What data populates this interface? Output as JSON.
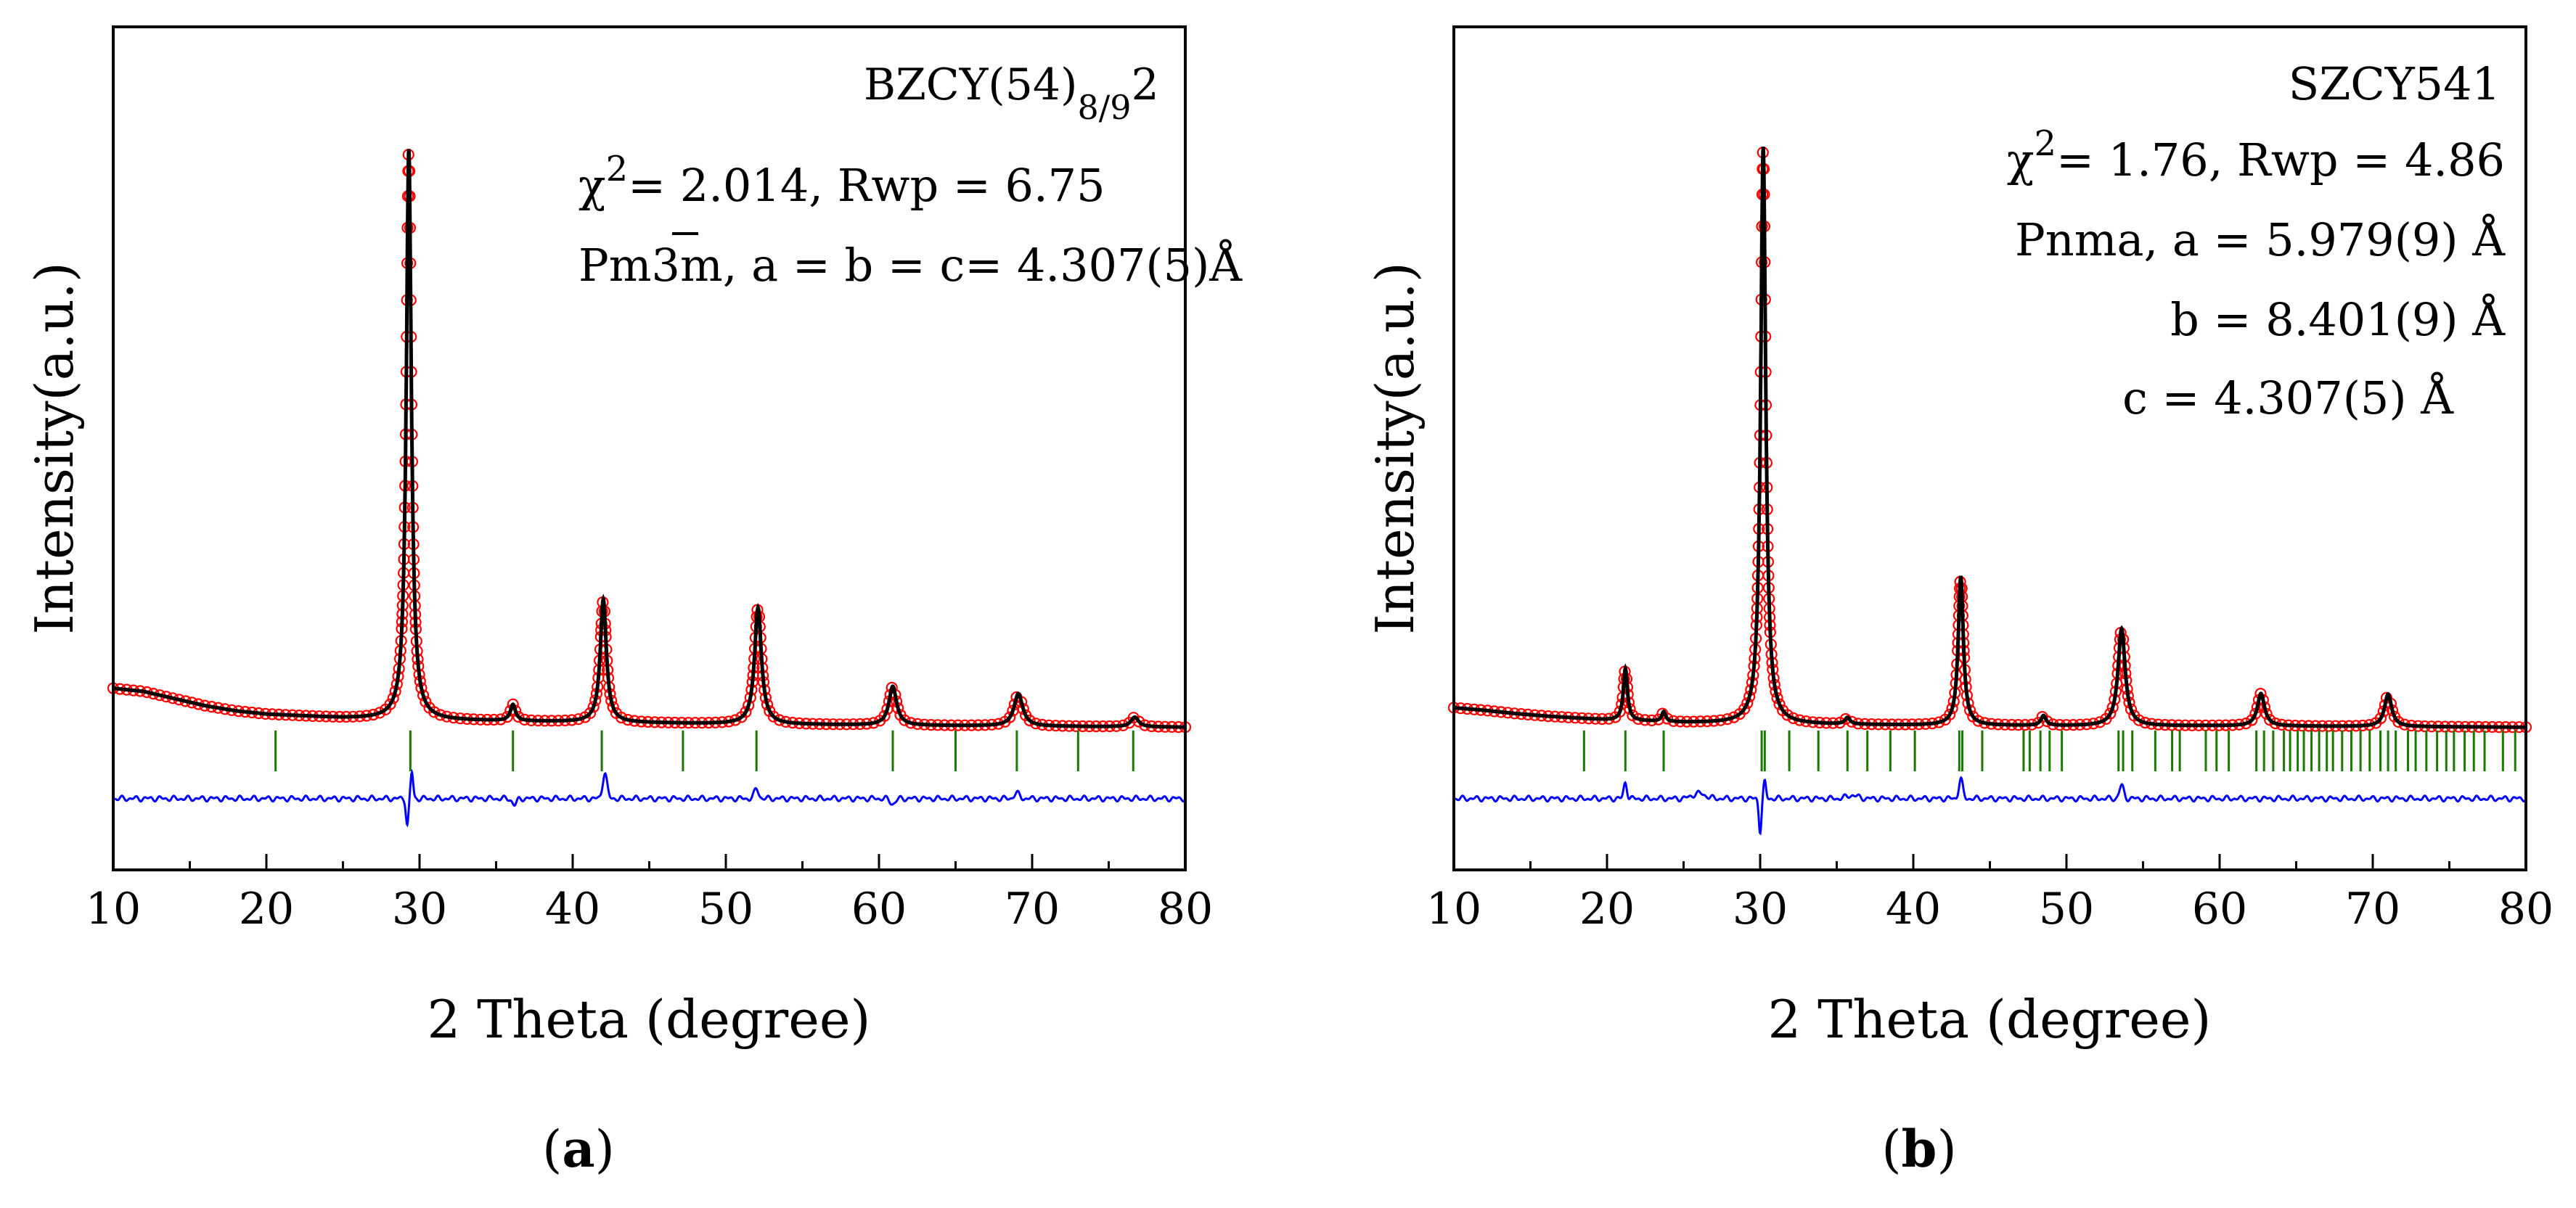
{
  "figure": {
    "caption_a": "a",
    "caption_b": "b"
  },
  "chart_data": [
    {
      "id": "a",
      "type": "line",
      "title": "BZCY(54)8/92",
      "sample_label": {
        "base": "BZCY(54)",
        "sub": "8/9",
        "tail": "2"
      },
      "annotations": [
        {
          "key": "fit_stats",
          "pre": "χ",
          "sup": "2",
          "text": "= 2.014, Rwp = 6.75"
        },
        {
          "key": "space_group",
          "text_a": "Pm",
          "text_b": "3",
          "text_c": "m, a = b = c= 4.307(5)Å"
        }
      ],
      "xlabel": "2 Theta (degree)",
      "ylabel": "Intensity(a.u.)",
      "xlim": [
        10,
        80
      ],
      "ylim": [
        -22,
        108
      ],
      "xticks": [
        "10",
        "20",
        "30",
        "40",
        "50",
        "60",
        "70",
        "80"
      ],
      "background": {
        "x": [
          10,
          12,
          14,
          16,
          18,
          20,
          25,
          30,
          40,
          50,
          60,
          70,
          80
        ],
        "y": [
          6,
          5.5,
          4.4,
          3.3,
          2.5,
          2.0,
          1.4,
          1.1,
          0.8,
          0.5,
          0.3,
          0.15,
          0.0
        ]
      },
      "peaks": [
        {
          "x": 29.3,
          "height": 88,
          "width": 0.2
        },
        {
          "x": 36.1,
          "height": 2.5,
          "width": 0.2
        },
        {
          "x": 42.0,
          "height": 19,
          "width": 0.24
        },
        {
          "x": 52.1,
          "height": 18,
          "width": 0.27
        },
        {
          "x": 60.9,
          "height": 6,
          "width": 0.3
        },
        {
          "x": 69.1,
          "height": 5,
          "width": 0.34
        },
        {
          "x": 76.7,
          "height": 1.5,
          "width": 0.3
        }
      ],
      "bragg_positions": [
        20.6,
        29.4,
        36.1,
        41.9,
        47.2,
        52.0,
        60.9,
        65.0,
        69.0,
        73.0,
        76.6
      ],
      "difference_offset": -11,
      "difference_features": [
        {
          "x": 29.2,
          "amp": -4,
          "width": 0.12
        },
        {
          "x": 29.5,
          "amp": 4,
          "width": 0.12
        },
        {
          "x": 36.2,
          "amp": -1,
          "width": 0.2
        },
        {
          "x": 42.1,
          "amp": 4,
          "width": 0.2
        },
        {
          "x": 52.0,
          "amp": 1.5,
          "width": 0.2
        },
        {
          "x": 60.9,
          "amp": -0.8,
          "width": 0.25
        },
        {
          "x": 69.0,
          "amp": 0.8,
          "width": 0.25
        }
      ],
      "series": [
        {
          "name": "Observed",
          "style": "open-circles",
          "color": "#ff0000"
        },
        {
          "name": "Calculated",
          "style": "line",
          "color": "#000000"
        },
        {
          "name": "Bragg positions",
          "style": "ticks",
          "color": "#1a7a00"
        },
        {
          "name": "Difference",
          "style": "line",
          "color": "#0000ff"
        }
      ]
    },
    {
      "id": "b",
      "type": "line",
      "title": "SZCY541",
      "annotations": [
        {
          "key": "fit_stats",
          "pre": "χ",
          "sup": "2",
          "text": "= 1.76, Rwp = 4.86"
        },
        {
          "key": "cell_a",
          "text": "Pnma, a = 5.979(9) Å"
        },
        {
          "key": "cell_b",
          "text": "b = 8.401(9) Å"
        },
        {
          "key": "cell_c",
          "text": "c = 4.307(5) Å"
        }
      ],
      "xlabel": "2 Theta (degree)",
      "ylabel": "Intensity(a.u.)",
      "xlim": [
        10,
        80
      ],
      "ylim": [
        -22,
        108
      ],
      "xticks": [
        "10",
        "20",
        "30",
        "40",
        "50",
        "60",
        "70",
        "80"
      ],
      "background": {
        "x": [
          10,
          12,
          14,
          16,
          18,
          20,
          25,
          30,
          40,
          50,
          60,
          70,
          80
        ],
        "y": [
          3.0,
          2.6,
          2.1,
          1.7,
          1.4,
          1.1,
          0.7,
          0.5,
          0.3,
          0.2,
          0.2,
          0.1,
          0.0
        ]
      },
      "peaks": [
        {
          "x": 21.2,
          "height": 8,
          "width": 0.16
        },
        {
          "x": 23.7,
          "height": 1.5,
          "width": 0.15
        },
        {
          "x": 30.2,
          "height": 89,
          "width": 0.2
        },
        {
          "x": 35.7,
          "height": 1.0,
          "width": 0.2
        },
        {
          "x": 43.1,
          "height": 23,
          "width": 0.2
        },
        {
          "x": 48.5,
          "height": 1.5,
          "width": 0.2
        },
        {
          "x": 53.6,
          "height": 15,
          "width": 0.28
        },
        {
          "x": 62.7,
          "height": 5,
          "width": 0.28
        },
        {
          "x": 71.0,
          "height": 5,
          "width": 0.28
        }
      ],
      "bragg_positions": [
        18.5,
        21.2,
        23.7,
        30.1,
        30.3,
        31.9,
        33.8,
        35.7,
        37.0,
        38.5,
        40.1,
        43.0,
        43.2,
        44.5,
        47.2,
        47.6,
        48.3,
        48.9,
        49.7,
        53.4,
        53.7,
        54.3,
        55.8,
        56.9,
        57.4,
        59.1,
        59.8,
        60.6,
        62.4,
        62.9,
        63.5,
        64.2,
        64.6,
        65.1,
        65.5,
        66.0,
        66.5,
        67.0,
        67.4,
        68.0,
        68.6,
        69.2,
        69.8,
        70.5,
        71.0,
        71.5,
        72.3,
        72.8,
        73.5,
        74.2,
        74.8,
        75.3,
        76.0,
        76.6,
        77.3,
        78.5,
        79.3
      ],
      "difference_offset": -11,
      "difference_features": [
        {
          "x": 21.2,
          "amp": 2.5,
          "width": 0.15
        },
        {
          "x": 30.0,
          "amp": -5,
          "width": 0.12
        },
        {
          "x": 30.3,
          "amp": 2.5,
          "width": 0.12
        },
        {
          "x": 43.1,
          "amp": 3,
          "width": 0.18
        },
        {
          "x": 53.6,
          "amp": 2,
          "width": 0.2
        },
        {
          "x": 26.0,
          "amp": 0.8,
          "width": 0.6
        },
        {
          "x": 36.0,
          "amp": 0.5,
          "width": 0.5
        }
      ],
      "series": [
        {
          "name": "Observed",
          "style": "open-circles",
          "color": "#ff0000"
        },
        {
          "name": "Calculated",
          "style": "line",
          "color": "#000000"
        },
        {
          "name": "Bragg positions",
          "style": "ticks",
          "color": "#1a7a00"
        },
        {
          "name": "Difference",
          "style": "line",
          "color": "#0000ff"
        }
      ]
    }
  ]
}
